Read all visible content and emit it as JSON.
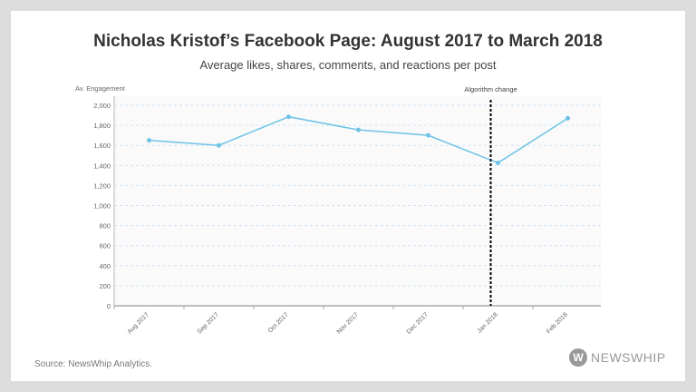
{
  "chart_data": {
    "type": "line",
    "title": "Nicholas Kristof’s Facebook Page: August 2017 to March 2018",
    "subtitle": "Average likes, shares, comments, and reactions per post",
    "ylabel": "Av. Engagement",
    "xlabel": "",
    "categories": [
      "Aug 2017",
      "Sep 2017",
      "Oct 2017",
      "Nov 2017",
      "Dec 2017",
      "Jan 2018",
      "Feb 2018"
    ],
    "values": [
      1650,
      1600,
      1885,
      1755,
      1700,
      1425,
      1870
    ],
    "ylim": [
      0,
      2000
    ],
    "yticks": [
      0,
      200,
      400,
      600,
      800,
      1000,
      1200,
      1400,
      1600,
      1800,
      2000
    ],
    "ytick_labels": [
      "0",
      "200",
      "400",
      "600",
      "800",
      "1,000",
      "1,200",
      "1,400",
      "1,600",
      "1,800",
      "2,000"
    ],
    "grid": true,
    "line_color": "#6ec3e6",
    "annotation": {
      "label": "Algorithm change",
      "x_category": "Jan 2018",
      "style": "dashed-vertical",
      "color": "#000000"
    }
  },
  "footer": {
    "source": "Source: NewsWhip Analytics.",
    "logo_text": "NEWSWHIP",
    "logo_letter": "W"
  }
}
